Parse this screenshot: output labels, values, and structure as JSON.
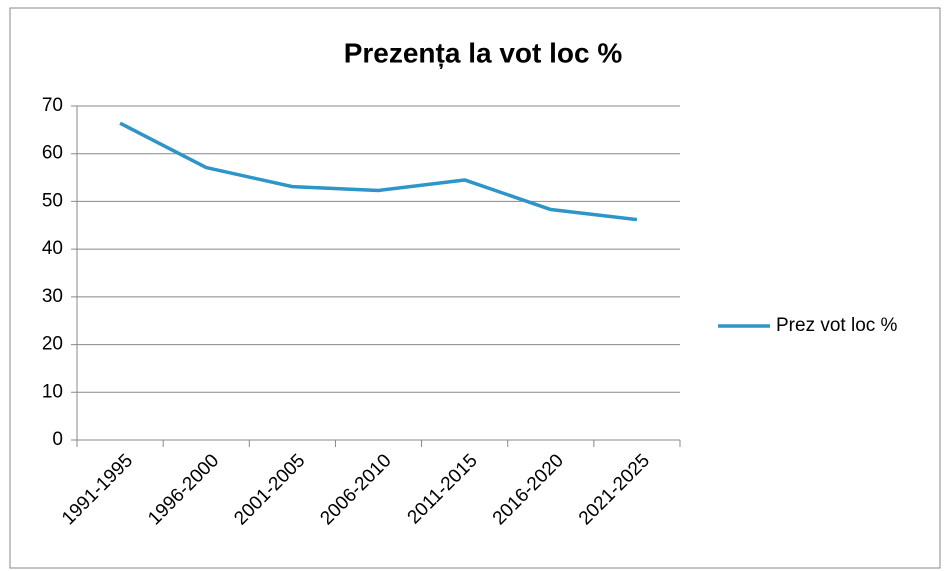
{
  "chart_data": {
    "type": "line",
    "title": "Prezența la vot loc %",
    "categories": [
      "1991-1995",
      "1996-2000",
      "2001-2005",
      "2006-2010",
      "2011-2015",
      "2016-2020",
      "2021-2025"
    ],
    "series": [
      {
        "name": "Prez vot loc %",
        "color": "#2e95c9",
        "values": [
          66.4,
          57.1,
          53.1,
          52.3,
          54.5,
          48.3,
          46.2
        ]
      }
    ],
    "ylim": [
      0,
      70
    ],
    "yticks": [
      0,
      10,
      20,
      30,
      40,
      50,
      60,
      70
    ],
    "grid": true,
    "legend": "right"
  }
}
